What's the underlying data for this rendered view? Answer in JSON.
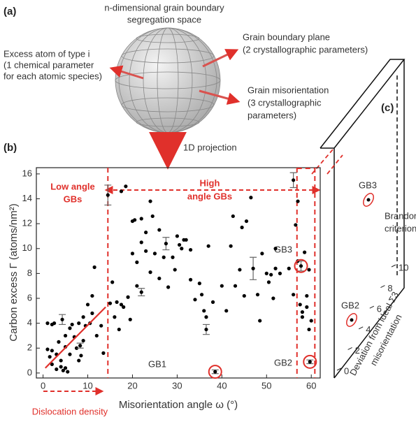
{
  "panel_a": {
    "label": "(a)",
    "title": [
      "n-dimensional grain boundary",
      "segregation space"
    ],
    "left": [
      "Excess atom of type i",
      "(1 chemical parameter",
      "for each atomic species)"
    ],
    "right_top": [
      "Grain boundary plane",
      "(2 crystallographic parameters)"
    ],
    "right_bottom": [
      "Grain misorientation",
      "(3 crystallographic",
      "parameters)"
    ],
    "projection": "1D projection"
  },
  "chart_data": {
    "type": "scatter",
    "label": "(b)",
    "x_label": "Misorientation angle ω (°)",
    "y_label": "Carbon excess Γ (atoms/nm²)",
    "xlim": [
      -1.5,
      62
    ],
    "ylim": [
      -0.4,
      16.5
    ],
    "xticks": [
      0,
      10,
      20,
      30,
      40,
      50,
      60
    ],
    "yticks": [
      0,
      2,
      4,
      6,
      8,
      10,
      12,
      14,
      16
    ],
    "color": "#000000",
    "accent": "#e0302b",
    "x": [
      1,
      2,
      2.5,
      1,
      1.5,
      2,
      2,
      3,
      3,
      3.5,
      4,
      4,
      4.5,
      5,
      5.5,
      5,
      5,
      6,
      6,
      6.5,
      7,
      7.5,
      8,
      8,
      8.5,
      9,
      9,
      9.5,
      10,
      10.5,
      11,
      11,
      11.5,
      12,
      13,
      13.5,
      15,
      15.5,
      16,
      16.5,
      17,
      17.5,
      17.5,
      18,
      18.5,
      19,
      19.5,
      20,
      20,
      20.5,
      21,
      21,
      22,
      22,
      23,
      23,
      24,
      24,
      24.5,
      25,
      26,
      26,
      27,
      28,
      29,
      29.5,
      30,
      30.5,
      31,
      31.5,
      32,
      33,
      33,
      34,
      35,
      35.5,
      36,
      36.5,
      37,
      38,
      40,
      41,
      42,
      42.5,
      43,
      44,
      44.5,
      45,
      45.5,
      46.5,
      48,
      48.5,
      49,
      50,
      50.5,
      51,
      51.5,
      52,
      52,
      53,
      55,
      56,
      56.5,
      57,
      57,
      57.5,
      58,
      58,
      58.5,
      59,
      59,
      59.5,
      60,
      59.5
    ],
    "values": [
      4.0,
      3.9,
      4.0,
      1.9,
      1.3,
      0.7,
      1.8,
      1.5,
      0.3,
      2.5,
      1.0,
      0.5,
      0.2,
      0.4,
      0.1,
      2.1,
      3.0,
      1.5,
      3.6,
      3.9,
      2.9,
      2.0,
      4.0,
      1.0,
      1.4,
      4.5,
      2.6,
      3.8,
      5.5,
      4.0,
      4.8,
      6.2,
      8.5,
      3.0,
      3.8,
      1.6,
      5.6,
      7.3,
      4.5,
      5.7,
      3.5,
      5.5,
      14.6,
      5.3,
      15.0,
      6.1,
      4.3,
      9.6,
      12.2,
      12.3,
      8.9,
      7.0,
      10.5,
      12.4,
      9.8,
      11.3,
      13.8,
      8.1,
      12.6,
      9.6,
      7.6,
      11.5,
      9.3,
      6.9,
      9.3,
      8.3,
      11.0,
      10.3,
      10.0,
      10.7,
      10.7,
      9.9,
      7.5,
      5.9,
      7.2,
      6.3,
      5.0,
      4.5,
      10.2,
      5.7,
      7.0,
      5.0,
      10.2,
      12.6,
      7.0,
      8.3,
      11.7,
      6.2,
      12.2,
      14.1,
      6.3,
      4.2,
      9.6,
      8.0,
      7.3,
      7.9,
      6.0,
      8.4,
      10.0,
      8.0,
      8.4,
      6.3,
      11.9,
      13.8,
      9.0,
      5.5,
      4.9,
      4.5,
      9.7,
      6.2,
      5.3,
      3.5,
      4.2,
      8.3
    ],
    "error_bars": {
      "x": [
        4.3,
        8.3,
        14.5,
        22,
        27.5,
        36.5,
        47,
        56,
        38.5,
        59.7,
        57.7
      ],
      "values": [
        4.3,
        2.2,
        14.3,
        6.5,
        10.4,
        3.5,
        8.4,
        15.5,
        0.1,
        0.9,
        8.6
      ],
      "errors": [
        0.4,
        0.2,
        0.8,
        0.3,
        0.5,
        0.4,
        0.9,
        0.6,
        0.15,
        0.15,
        0.4
      ]
    },
    "fit_line": {
      "x": [
        0.5,
        14
      ],
      "values": [
        0.4,
        5.3
      ]
    },
    "region_x": [
      14.5,
      56.8,
      60.8
    ],
    "low_angle": [
      "Low angle",
      "GBs"
    ],
    "high_angle": [
      "High",
      "angle GBs"
    ],
    "dislocation": "Dislocation density",
    "gb_labels": [
      "GB1",
      "GB2",
      "GB3"
    ]
  },
  "panel_c": {
    "label": "(c)",
    "gb_labels": [
      "GB3",
      "GB2"
    ],
    "criterion": [
      "Brandon",
      "criterion"
    ],
    "axis_label": [
      "Deviation from ideal Σ3",
      "misorientation"
    ],
    "ticks": [
      0,
      2,
      4,
      6,
      8,
      10
    ]
  }
}
